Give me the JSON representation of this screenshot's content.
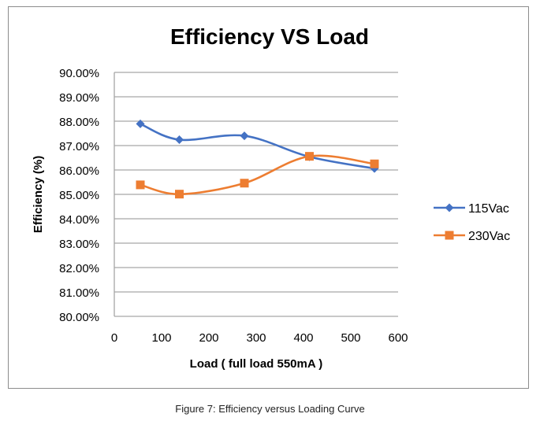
{
  "chart_data": {
    "type": "line",
    "title": "Efficiency VS Load",
    "xlabel": "Load ( full load 550mA )",
    "ylabel": "Efficiency (%)",
    "xlim": [
      0,
      600
    ],
    "ylim": [
      80,
      90
    ],
    "xticks": [
      "0",
      "100",
      "200",
      "300",
      "400",
      "500",
      "600"
    ],
    "yticks": [
      "80.00%",
      "81.00%",
      "82.00%",
      "83.00%",
      "84.00%",
      "85.00%",
      "86.00%",
      "87.00%",
      "88.00%",
      "89.00%",
      "90.00%"
    ],
    "grid": true,
    "legend": "right",
    "x": [
      55,
      137.5,
      275,
      412.5,
      550
    ],
    "series": [
      {
        "name": "115Vac",
        "color": "#4472c4",
        "marker": "diamond",
        "values": [
          87.89,
          87.24,
          87.4,
          86.54,
          86.06
        ]
      },
      {
        "name": "230Vac",
        "color": "#ed7d31",
        "marker": "square",
        "values": [
          85.39,
          85.01,
          85.46,
          86.56,
          86.25
        ]
      }
    ]
  },
  "caption": "Figure 7: Efficiency versus Loading Curve"
}
